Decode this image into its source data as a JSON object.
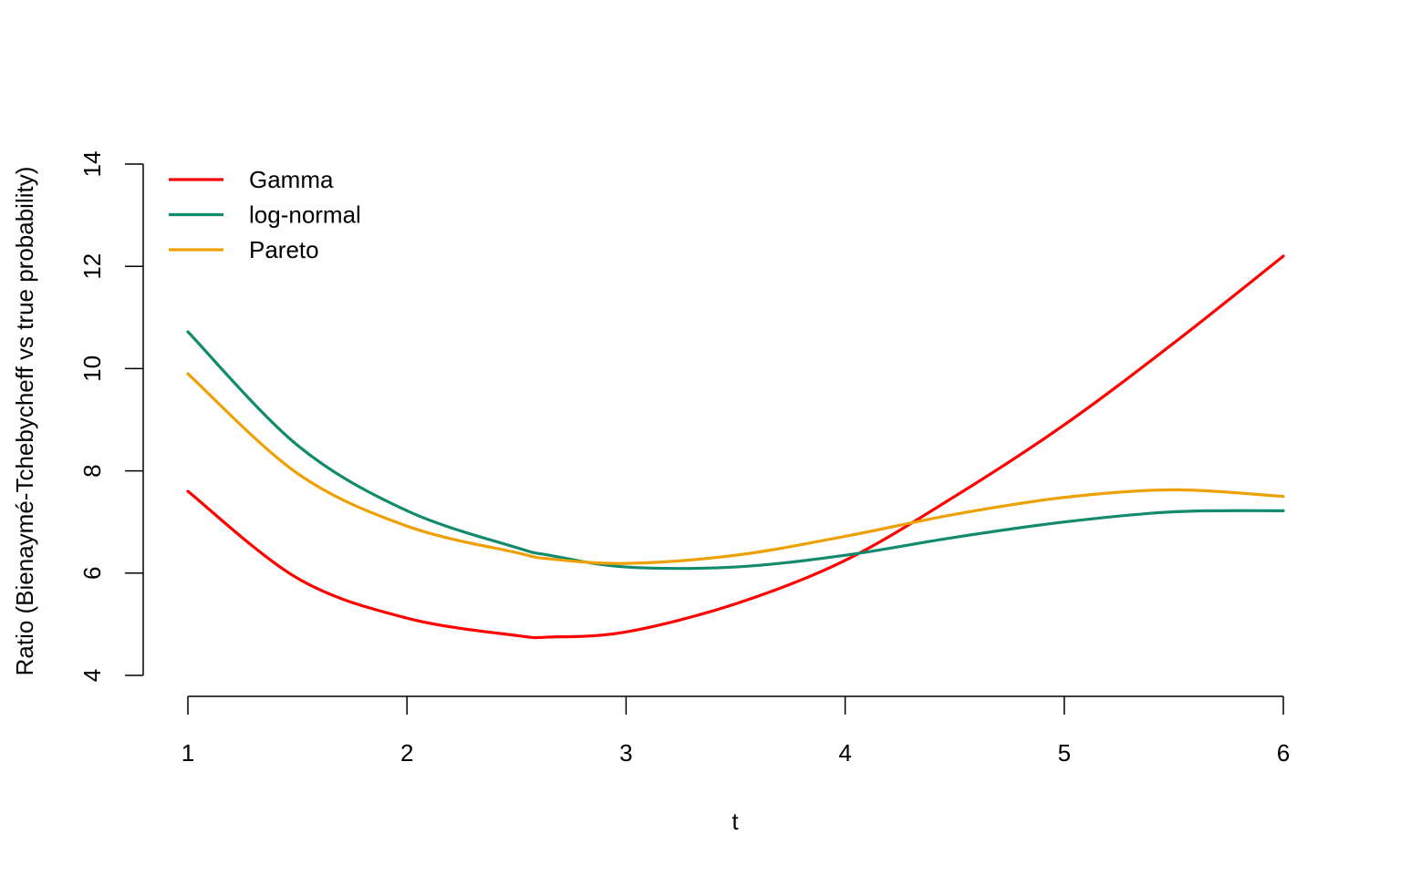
{
  "chart_data": {
    "type": "line",
    "title": "",
    "xlabel": "t",
    "ylabel": "Ratio (Bienaymé-Tchebycheff vs true probability)",
    "xlim": [
      1,
      6
    ],
    "ylim": [
      4,
      14
    ],
    "x_ticks": [
      1,
      2,
      3,
      4,
      5,
      6
    ],
    "y_ticks": [
      4,
      6,
      8,
      10,
      12,
      14
    ],
    "grid": false,
    "legend_position": "top-left",
    "x": [
      1.0,
      1.5,
      2.0,
      2.5,
      2.65,
      3.0,
      3.5,
      4.0,
      4.5,
      5.0,
      5.5,
      6.0
    ],
    "series": [
      {
        "name": "Gamma",
        "color": "#ff0000",
        "values": [
          7.6,
          5.9,
          5.12,
          4.78,
          4.75,
          4.85,
          5.4,
          6.25,
          7.5,
          8.9,
          10.5,
          12.2
        ]
      },
      {
        "name": "log-normal",
        "color": "#118a6e",
        "values": [
          10.72,
          8.5,
          7.22,
          6.5,
          6.35,
          6.12,
          6.12,
          6.35,
          6.7,
          7.0,
          7.2,
          7.22
        ]
      },
      {
        "name": "Pareto",
        "color": "#eea000",
        "values": [
          9.9,
          7.95,
          6.92,
          6.4,
          6.28,
          6.19,
          6.35,
          6.72,
          7.15,
          7.48,
          7.63,
          7.5
        ]
      }
    ]
  }
}
